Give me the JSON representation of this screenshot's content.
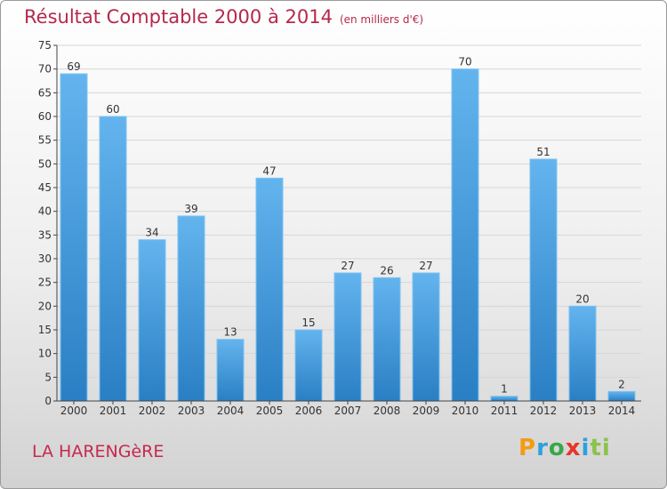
{
  "title": "Résultat Comptable 2000 à 2014",
  "subtitle": "(en milliers d'€)",
  "commune": "LA HARENGèRE",
  "logo": [
    "P",
    "r",
    "o",
    "x",
    "i",
    "ti"
  ],
  "chart_data": {
    "type": "bar",
    "categories": [
      "2000",
      "2001",
      "2002",
      "2003",
      "2004",
      "2005",
      "2006",
      "2007",
      "2008",
      "2009",
      "2010",
      "2011",
      "2012",
      "2013",
      "2014"
    ],
    "values": [
      69,
      60,
      34,
      39,
      13,
      47,
      15,
      27,
      26,
      27,
      70,
      1,
      51,
      20,
      2
    ],
    "ylim": [
      0,
      75
    ],
    "yticks": [
      0,
      5,
      10,
      15,
      20,
      25,
      30,
      35,
      40,
      45,
      50,
      55,
      60,
      65,
      70,
      75
    ],
    "grid": true,
    "colors": {
      "bar_light": "#63b4ee",
      "bar_dark": "#2a7fc4",
      "axis": "#444444",
      "grid": "#d6d6d6"
    }
  }
}
